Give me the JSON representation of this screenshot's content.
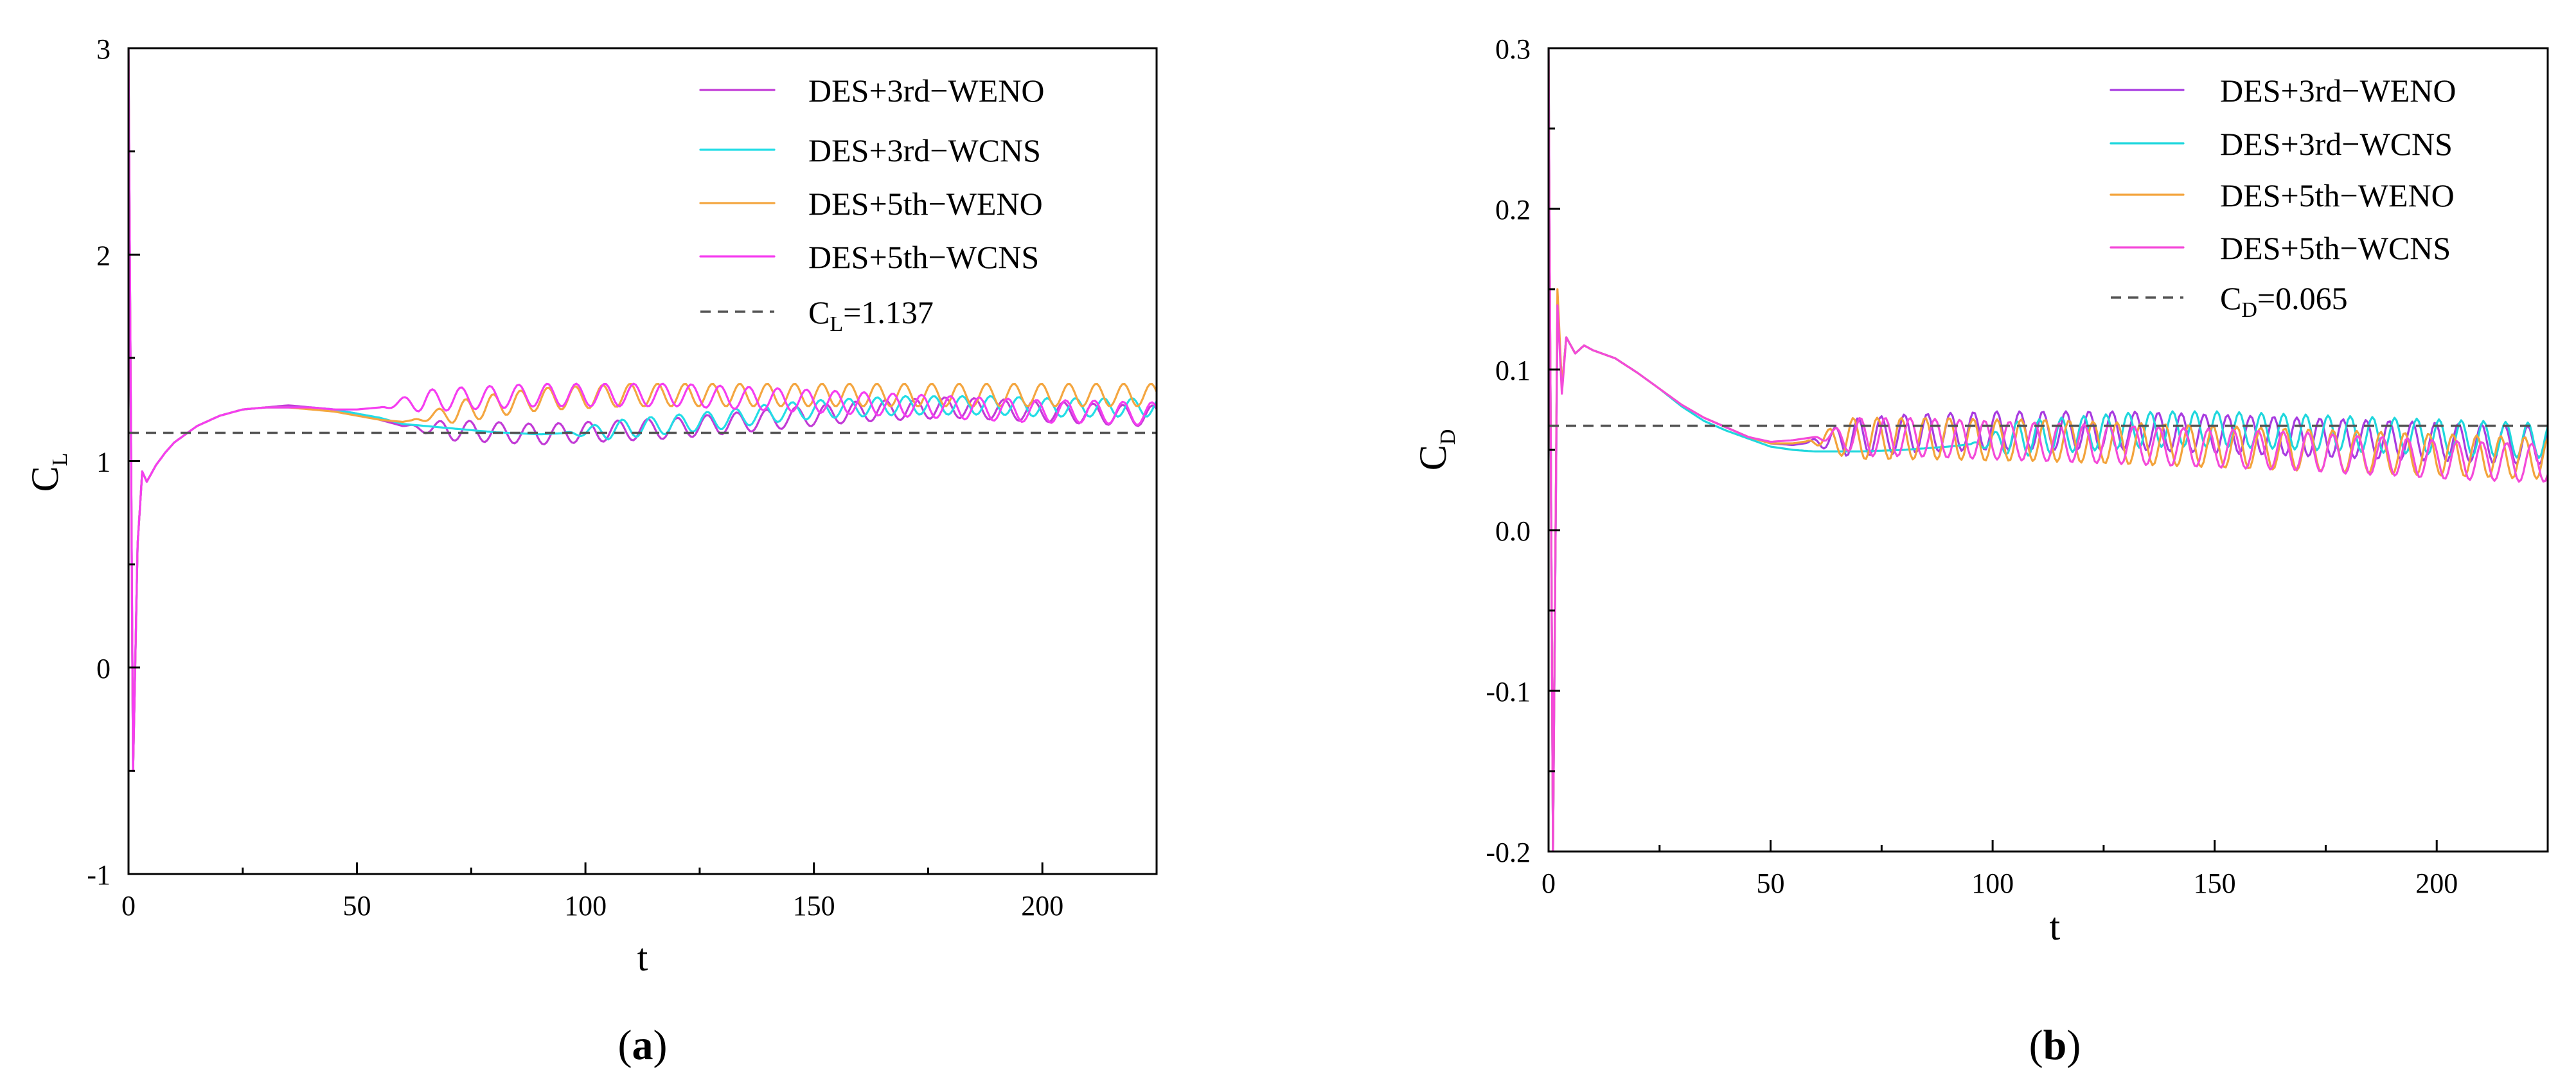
{
  "chart_data": [
    {
      "type": "line",
      "panel": "a",
      "caption_label": "a",
      "xlabel": "t",
      "ylabel": "C",
      "ylabel_sub": "L",
      "xlim": [
        0,
        225
      ],
      "ylim": [
        -1,
        3
      ],
      "xticks": [
        0,
        50,
        100,
        150,
        200
      ],
      "yticks": [
        -1,
        0,
        1,
        2,
        3
      ],
      "legend_position": "top-right",
      "reference": {
        "label_main": "C",
        "label_sub": "L",
        "label_rest": "=1.137",
        "value": 1.137,
        "color": "#555555"
      },
      "series": [
        {
          "name": "DES+3rd−WENO",
          "color": "#c23bd6",
          "t": [
            0,
            1,
            2,
            3,
            4,
            6,
            8,
            10,
            15,
            20,
            25,
            30,
            35,
            40,
            45,
            50,
            55,
            60,
            70,
            80,
            90,
            100,
            110,
            120,
            130,
            140,
            150,
            160,
            170,
            180,
            190,
            200,
            210,
            220,
            225
          ],
          "v": [
            3.0,
            -0.5,
            0.6,
            0.95,
            0.9,
            0.98,
            1.04,
            1.09,
            1.17,
            1.22,
            1.25,
            1.26,
            1.27,
            1.26,
            1.25,
            1.23,
            1.2,
            1.17,
            1.15,
            1.14,
            1.13,
            1.14,
            1.15,
            1.16,
            1.18,
            1.2,
            1.22,
            1.24,
            1.25,
            1.26,
            1.25,
            1.24,
            1.23,
            1.22,
            1.22
          ],
          "osc_start": 60,
          "osc_amp": 0.05,
          "osc_period": 6.5
        },
        {
          "name": "DES+3rd−WCNS",
          "color": "#23dde6",
          "t": [
            0,
            1,
            2,
            3,
            4,
            6,
            8,
            10,
            15,
            20,
            25,
            30,
            35,
            40,
            45,
            50,
            55,
            60,
            70,
            80,
            90,
            100,
            110,
            120,
            130,
            140,
            150,
            160,
            170,
            180,
            190,
            200,
            210,
            220,
            225
          ],
          "v": [
            3.0,
            -0.5,
            0.6,
            0.95,
            0.9,
            0.98,
            1.04,
            1.09,
            1.17,
            1.22,
            1.25,
            1.26,
            1.26,
            1.26,
            1.25,
            1.23,
            1.21,
            1.18,
            1.16,
            1.14,
            1.13,
            1.14,
            1.16,
            1.18,
            1.2,
            1.23,
            1.25,
            1.26,
            1.27,
            1.27,
            1.27,
            1.26,
            1.26,
            1.26,
            1.26
          ],
          "osc_start": 95,
          "osc_amp": 0.045,
          "osc_period": 6.2
        },
        {
          "name": "DES+5th−WENO",
          "color": "#f4a640",
          "t": [
            0,
            1,
            2,
            3,
            4,
            6,
            8,
            10,
            15,
            20,
            25,
            30,
            35,
            40,
            45,
            50,
            55,
            60,
            70,
            80,
            90,
            100,
            110,
            120,
            130,
            140,
            150,
            160,
            170,
            180,
            190,
            200,
            210,
            220,
            225
          ],
          "v": [
            3.0,
            -0.5,
            0.6,
            0.95,
            0.9,
            0.98,
            1.04,
            1.09,
            1.17,
            1.22,
            1.25,
            1.26,
            1.26,
            1.25,
            1.24,
            1.22,
            1.2,
            1.19,
            1.23,
            1.27,
            1.3,
            1.31,
            1.32,
            1.32,
            1.32,
            1.32,
            1.32,
            1.32,
            1.32,
            1.32,
            1.32,
            1.32,
            1.32,
            1.32,
            1.32
          ],
          "osc_start": 62,
          "osc_amp": 0.055,
          "osc_period": 6.0
        },
        {
          "name": "DES+5th−WCNS",
          "color": "#f53df0",
          "t": [
            0,
            1,
            2,
            3,
            4,
            6,
            8,
            10,
            15,
            20,
            25,
            30,
            35,
            40,
            45,
            50,
            55,
            60,
            70,
            80,
            90,
            100,
            110,
            120,
            130,
            140,
            150,
            160,
            170,
            180,
            190,
            200,
            210,
            220,
            225
          ],
          "v": [
            3.0,
            -0.5,
            0.6,
            0.95,
            0.9,
            0.98,
            1.04,
            1.09,
            1.17,
            1.22,
            1.25,
            1.26,
            1.26,
            1.26,
            1.25,
            1.25,
            1.26,
            1.28,
            1.3,
            1.31,
            1.32,
            1.32,
            1.32,
            1.32,
            1.31,
            1.3,
            1.29,
            1.28,
            1.27,
            1.26,
            1.25,
            1.24,
            1.24,
            1.23,
            1.23
          ],
          "osc_start": 55,
          "osc_amp": 0.055,
          "osc_period": 6.3
        }
      ]
    },
    {
      "type": "line",
      "panel": "b",
      "caption_label": "b",
      "xlabel": "t",
      "ylabel": "C",
      "ylabel_sub": "D",
      "xlim": [
        0,
        225
      ],
      "ylim": [
        -0.2,
        0.3
      ],
      "xticks": [
        0,
        50,
        100,
        150,
        200
      ],
      "yticks": [
        -0.2,
        -0.1,
        0.0,
        0.1,
        0.2,
        0.3
      ],
      "ytick_labels": [
        "-0.2",
        "-0.1",
        "0.0",
        "0.1",
        "0.2",
        "0.3"
      ],
      "legend_position": "top-right",
      "reference": {
        "label_main": "C",
        "label_sub": "D",
        "label_rest": "=0.065",
        "value": 0.065,
        "color": "#555555"
      },
      "series": [
        {
          "name": "DES+3rd−WENO",
          "color": "#a83be0",
          "t": [
            0,
            1,
            2,
            3,
            4,
            6,
            8,
            10,
            15,
            20,
            25,
            30,
            35,
            40,
            45,
            50,
            55,
            60,
            70,
            80,
            90,
            100,
            110,
            120,
            130,
            140,
            150,
            160,
            170,
            180,
            190,
            200,
            210,
            220,
            225
          ],
          "v": [
            0.3,
            -0.2,
            0.14,
            0.09,
            0.12,
            0.11,
            0.115,
            0.112,
            0.107,
            0.098,
            0.088,
            0.078,
            0.07,
            0.064,
            0.058,
            0.054,
            0.053,
            0.055,
            0.058,
            0.06,
            0.061,
            0.062,
            0.062,
            0.062,
            0.062,
            0.061,
            0.06,
            0.059,
            0.058,
            0.057,
            0.056,
            0.055,
            0.054,
            0.053,
            0.053
          ],
          "osc_start": 58,
          "osc_amp": 0.012,
          "osc_period": 5.2
        },
        {
          "name": "DES+3rd−WCNS",
          "color": "#1fd7dd",
          "t": [
            0,
            1,
            2,
            3,
            4,
            6,
            8,
            10,
            15,
            20,
            25,
            30,
            35,
            40,
            45,
            50,
            55,
            60,
            70,
            80,
            90,
            100,
            110,
            120,
            130,
            140,
            150,
            160,
            170,
            180,
            190,
            200,
            210,
            220,
            225
          ],
          "v": [
            0.3,
            -0.2,
            0.14,
            0.09,
            0.12,
            0.11,
            0.115,
            0.112,
            0.107,
            0.098,
            0.088,
            0.077,
            0.068,
            0.062,
            0.057,
            0.052,
            0.05,
            0.049,
            0.049,
            0.05,
            0.052,
            0.055,
            0.058,
            0.06,
            0.062,
            0.063,
            0.063,
            0.062,
            0.061,
            0.06,
            0.059,
            0.058,
            0.057,
            0.056,
            0.056
          ],
          "osc_start": 95,
          "osc_amp": 0.011,
          "osc_period": 5.0
        },
        {
          "name": "DES+5th−WENO",
          "color": "#f3a33b",
          "t": [
            0,
            1,
            2,
            3,
            4,
            6,
            8,
            10,
            15,
            20,
            25,
            30,
            35,
            40,
            45,
            50,
            55,
            60,
            70,
            80,
            90,
            100,
            110,
            120,
            130,
            140,
            150,
            160,
            170,
            180,
            190,
            200,
            210,
            220,
            225
          ],
          "v": [
            0.3,
            -0.2,
            0.15,
            0.09,
            0.12,
            0.11,
            0.115,
            0.112,
            0.107,
            0.098,
            0.088,
            0.078,
            0.07,
            0.064,
            0.058,
            0.054,
            0.054,
            0.056,
            0.057,
            0.057,
            0.057,
            0.056,
            0.056,
            0.055,
            0.054,
            0.053,
            0.052,
            0.051,
            0.05,
            0.049,
            0.048,
            0.047,
            0.046,
            0.045,
            0.045
          ],
          "osc_start": 58,
          "osc_amp": 0.013,
          "osc_period": 5.4
        },
        {
          "name": "DES+5th−WCNS",
          "color": "#f44ad9",
          "t": [
            0,
            1,
            2,
            3,
            4,
            6,
            8,
            10,
            15,
            20,
            25,
            30,
            35,
            40,
            45,
            50,
            55,
            60,
            70,
            80,
            90,
            100,
            110,
            120,
            130,
            140,
            150,
            160,
            170,
            180,
            190,
            200,
            210,
            220,
            225
          ],
          "v": [
            0.3,
            -0.2,
            0.14,
            0.085,
            0.12,
            0.11,
            0.115,
            0.112,
            0.107,
            0.098,
            0.088,
            0.078,
            0.07,
            0.064,
            0.058,
            0.055,
            0.056,
            0.058,
            0.058,
            0.058,
            0.057,
            0.056,
            0.055,
            0.054,
            0.053,
            0.052,
            0.051,
            0.05,
            0.049,
            0.047,
            0.046,
            0.044,
            0.043,
            0.042,
            0.042
          ],
          "osc_start": 60,
          "osc_amp": 0.012,
          "osc_period": 5.6
        }
      ]
    }
  ]
}
